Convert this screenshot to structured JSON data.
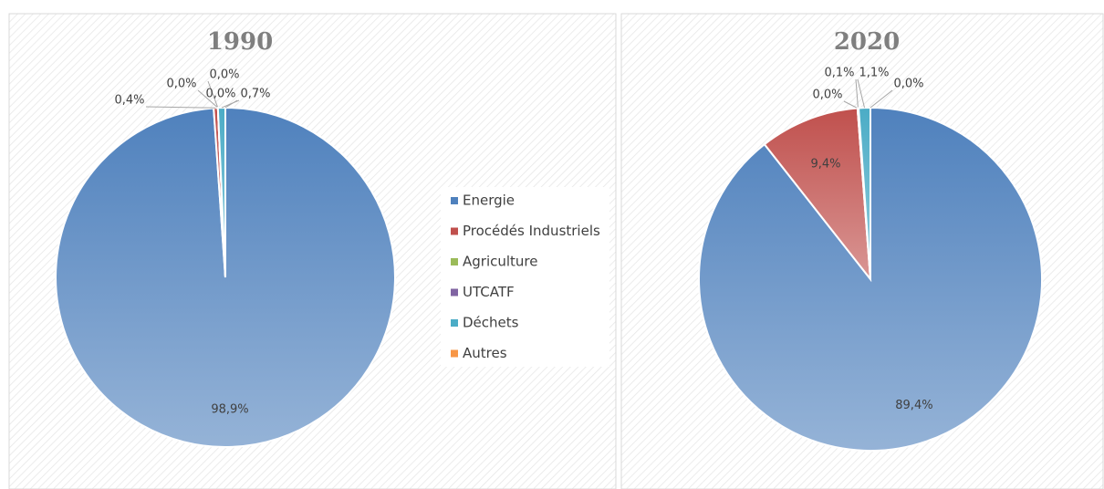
{
  "chart_data": [
    {
      "type": "pie",
      "title": "1990",
      "categories": [
        "Energie",
        "Procédés Industriels",
        "Agriculture",
        "UTCATF",
        "Déchets",
        "Autres"
      ],
      "values": [
        98.9,
        0.4,
        0.0,
        0.0,
        0.7,
        0.0
      ],
      "value_labels": [
        "98,9%",
        "0,4%",
        "0,0%",
        "0,0%",
        "0,7%",
        "0,0%"
      ],
      "colors": [
        "#4f81bd",
        "#c0504d",
        "#9bbb59",
        "#8064a2",
        "#4bacc6",
        "#f79646"
      ]
    },
    {
      "type": "pie",
      "title": "2020",
      "categories": [
        "Energie",
        "Procédés Industriels",
        "Agriculture",
        "UTCATF",
        "Déchets",
        "Autres"
      ],
      "values": [
        89.4,
        9.4,
        0.0,
        0.1,
        1.1,
        0.0
      ],
      "value_labels": [
        "89,4%",
        "9,4%",
        "0,0%",
        "0,1%",
        "1,1%",
        "0,0%"
      ],
      "colors": [
        "#4f81bd",
        "#c0504d",
        "#9bbb59",
        "#8064a2",
        "#4bacc6",
        "#f79646"
      ]
    }
  ]
}
